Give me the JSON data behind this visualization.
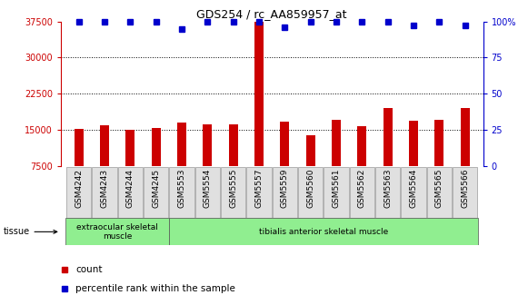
{
  "title": "GDS254 / rc_AA859957_at",
  "categories": [
    "GSM4242",
    "GSM4243",
    "GSM4244",
    "GSM4245",
    "GSM5553",
    "GSM5554",
    "GSM5555",
    "GSM5557",
    "GSM5559",
    "GSM5560",
    "GSM5561",
    "GSM5562",
    "GSM5563",
    "GSM5564",
    "GSM5565",
    "GSM5566"
  ],
  "bar_values": [
    15200,
    16000,
    15100,
    15400,
    16500,
    16200,
    16200,
    37500,
    16700,
    13900,
    17200,
    15700,
    19500,
    16900,
    17200,
    19500
  ],
  "percentile_values": [
    100,
    100,
    100,
    100,
    95,
    100,
    100,
    100,
    96,
    100,
    100,
    100,
    100,
    97,
    100,
    97
  ],
  "bar_color": "#CC0000",
  "percentile_color": "#0000CC",
  "ylim_left": [
    7500,
    37500
  ],
  "ylim_right": [
    0,
    100
  ],
  "yticks_left": [
    7500,
    15000,
    22500,
    30000,
    37500
  ],
  "yticks_right": [
    0,
    25,
    50,
    75,
    100
  ],
  "background_color": "#ffffff",
  "tissue_group1": "extraocular skeletal\nmuscle",
  "tissue_group2": "tibialis anterior skeletal muscle",
  "tissue_group1_count": 4,
  "tissue_group2_count": 12,
  "legend_count_label": "count",
  "legend_percentile_label": "percentile rank within the sample",
  "dotted_yticks": [
    15000,
    22500,
    30000
  ],
  "tick_bg": "#E0E0E0",
  "tick_edge": "#999999",
  "tissue_color": "#90EE90",
  "tissue_edge": "#555555"
}
